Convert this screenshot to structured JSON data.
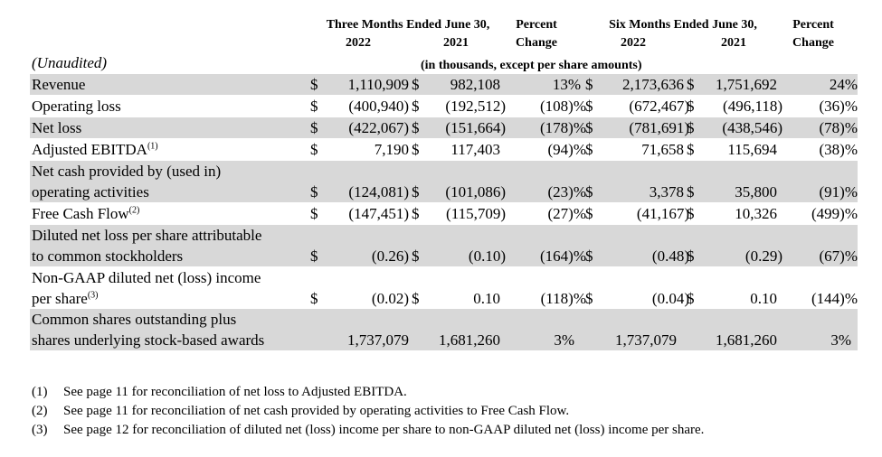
{
  "header": {
    "three_months_title": "Three Months Ended June 30,",
    "six_months_title": "Six Months Ended June 30,",
    "y2022": "2022",
    "y2021": "2021",
    "percent": "Percent",
    "change": "Change",
    "unaudited": "(Unaudited)",
    "units_note": "(in thousands, except per share amounts)"
  },
  "rows": [
    {
      "label": "Revenue",
      "d1": "$",
      "c1": "1,110,909",
      "d2": "$",
      "c2": "982,108",
      "p1": "13%",
      "d3": "$",
      "c3": "2,173,636",
      "d4": "$",
      "c4": "1,751,692",
      "p2": "24%"
    },
    {
      "label": "Operating loss",
      "d1": "$",
      "c1": "(400,940)",
      "d2": "$",
      "c2": "(192,512)",
      "p1": "(108)%",
      "d3": "$",
      "c3": "(672,467)",
      "d4": "$",
      "c4": "(496,118)",
      "p2": "(36)%"
    },
    {
      "label": "Net loss",
      "d1": "$",
      "c1": "(422,067)",
      "d2": "$",
      "c2": "(151,664)",
      "p1": "(178)%",
      "d3": "$",
      "c3": "(781,691)",
      "d4": "$",
      "c4": "(438,546)",
      "p2": "(78)%"
    },
    {
      "label": "Adjusted EBITDA",
      "label_sup": "(1)",
      "d1": "$",
      "c1": "7,190",
      "d2": "$",
      "c2": "117,403",
      "p1": "(94)%",
      "d3": "$",
      "c3": "71,658",
      "d4": "$",
      "c4": "115,694",
      "p2": "(38)%"
    },
    {
      "label_line1": "Net cash provided by (used in)",
      "label": "operating activities",
      "d1": "$",
      "c1": "(124,081)",
      "d2": "$",
      "c2": "(101,086)",
      "p1": "(23)%",
      "d3": "$",
      "c3": "3,378",
      "d4": "$",
      "c4": "35,800",
      "p2": "(91)%"
    },
    {
      "label": "Free Cash Flow",
      "label_sup": "(2)",
      "d1": "$",
      "c1": "(147,451)",
      "d2": "$",
      "c2": "(115,709)",
      "p1": "(27)%",
      "d3": "$",
      "c3": "(41,167)",
      "d4": "$",
      "c4": "10,326",
      "p2": "(499)%"
    },
    {
      "label_line1": "Diluted net loss per share attributable",
      "label": "to common stockholders",
      "d1": "$",
      "c1": "(0.26)",
      "d2": "$",
      "c2": "(0.10)",
      "p1": "(164)%",
      "d3": "$",
      "c3": "(0.48)",
      "d4": "$",
      "c4": "(0.29)",
      "p2": "(67)%"
    },
    {
      "label_line1": "Non-GAAP diluted net (loss) income",
      "label": "per share",
      "label_sup": "(3)",
      "d1": "$",
      "c1": "(0.02)",
      "d2": "$",
      "c2": "0.10",
      "p1": "(118)%",
      "d3": "$",
      "c3": "(0.04)",
      "d4": "$",
      "c4": "0.10",
      "p2": "(144)%"
    },
    {
      "label_line1": "Common shares outstanding plus",
      "label": "shares underlying stock-based awards",
      "c1": "1,737,079",
      "c2": "1,681,260",
      "p1": "3%",
      "c3": "1,737,079",
      "c4": "1,681,260",
      "p2": "3%"
    }
  ],
  "footnotes": [
    {
      "num": "(1)",
      "text": "See page 11 for reconciliation of net loss to Adjusted EBITDA."
    },
    {
      "num": "(2)",
      "text": "See page 11 for reconciliation of net cash provided by operating activities to Free Cash Flow."
    },
    {
      "num": "(3)",
      "text": "See page 12 for reconciliation of diluted net (loss) income per share to non-GAAP diluted net (loss) income per share."
    }
  ]
}
